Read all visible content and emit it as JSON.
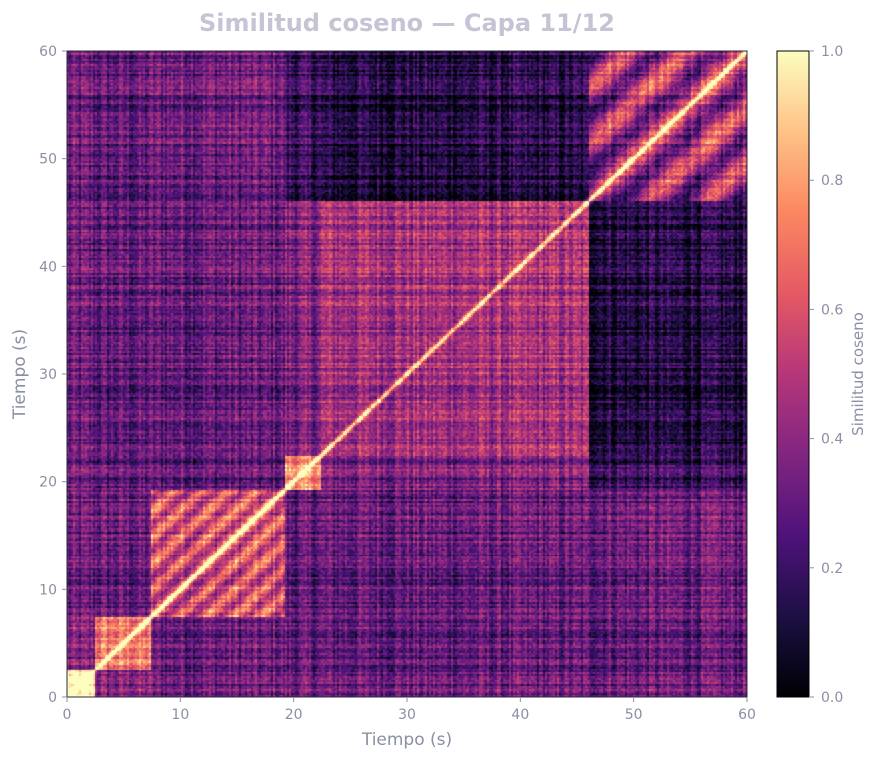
{
  "chart_data": {
    "type": "heatmap",
    "title": "Similitud coseno — Capa 11/12",
    "xlabel": "Tiempo (s)",
    "ylabel": "Tiempo (s)",
    "xlim": [
      0,
      60
    ],
    "ylim": [
      0,
      60
    ],
    "x_ticks": [
      "0",
      "10",
      "20",
      "30",
      "40",
      "50",
      "60"
    ],
    "y_ticks": [
      "0",
      "10",
      "20",
      "30",
      "40",
      "50",
      "60"
    ],
    "colormap": "magma",
    "colorbar": {
      "label": "Similitud coseno",
      "range": [
        0.0,
        1.0
      ],
      "ticks": [
        "0.0",
        "0.2",
        "0.4",
        "0.6",
        "0.8",
        "1.0"
      ]
    },
    "segments_s": [
      0,
      2.5,
      7.5,
      19.2,
      22.5,
      46,
      60
    ],
    "segment_similarity": [
      [
        1.0,
        0.35,
        0.3,
        0.3,
        0.3,
        0.3
      ],
      [
        0.35,
        0.7,
        0.3,
        0.28,
        0.28,
        0.28
      ],
      [
        0.3,
        0.3,
        0.6,
        0.28,
        0.3,
        0.32
      ],
      [
        0.3,
        0.28,
        0.28,
        0.75,
        0.35,
        0.18
      ],
      [
        0.3,
        0.28,
        0.3,
        0.35,
        0.45,
        0.12
      ],
      [
        0.3,
        0.28,
        0.32,
        0.18,
        0.12,
        0.45
      ]
    ],
    "diagonal": 1.0,
    "grid": false,
    "colors": {
      "magma_stops": [
        "#000004",
        "#1c1044",
        "#4f127b",
        "#812581",
        "#b5367a",
        "#e55964",
        "#fb8761",
        "#fec287",
        "#fcfdbf"
      ],
      "text": "#8a8fa3",
      "title": "#c6c4d4",
      "frame": "#2a2a3a"
    }
  }
}
